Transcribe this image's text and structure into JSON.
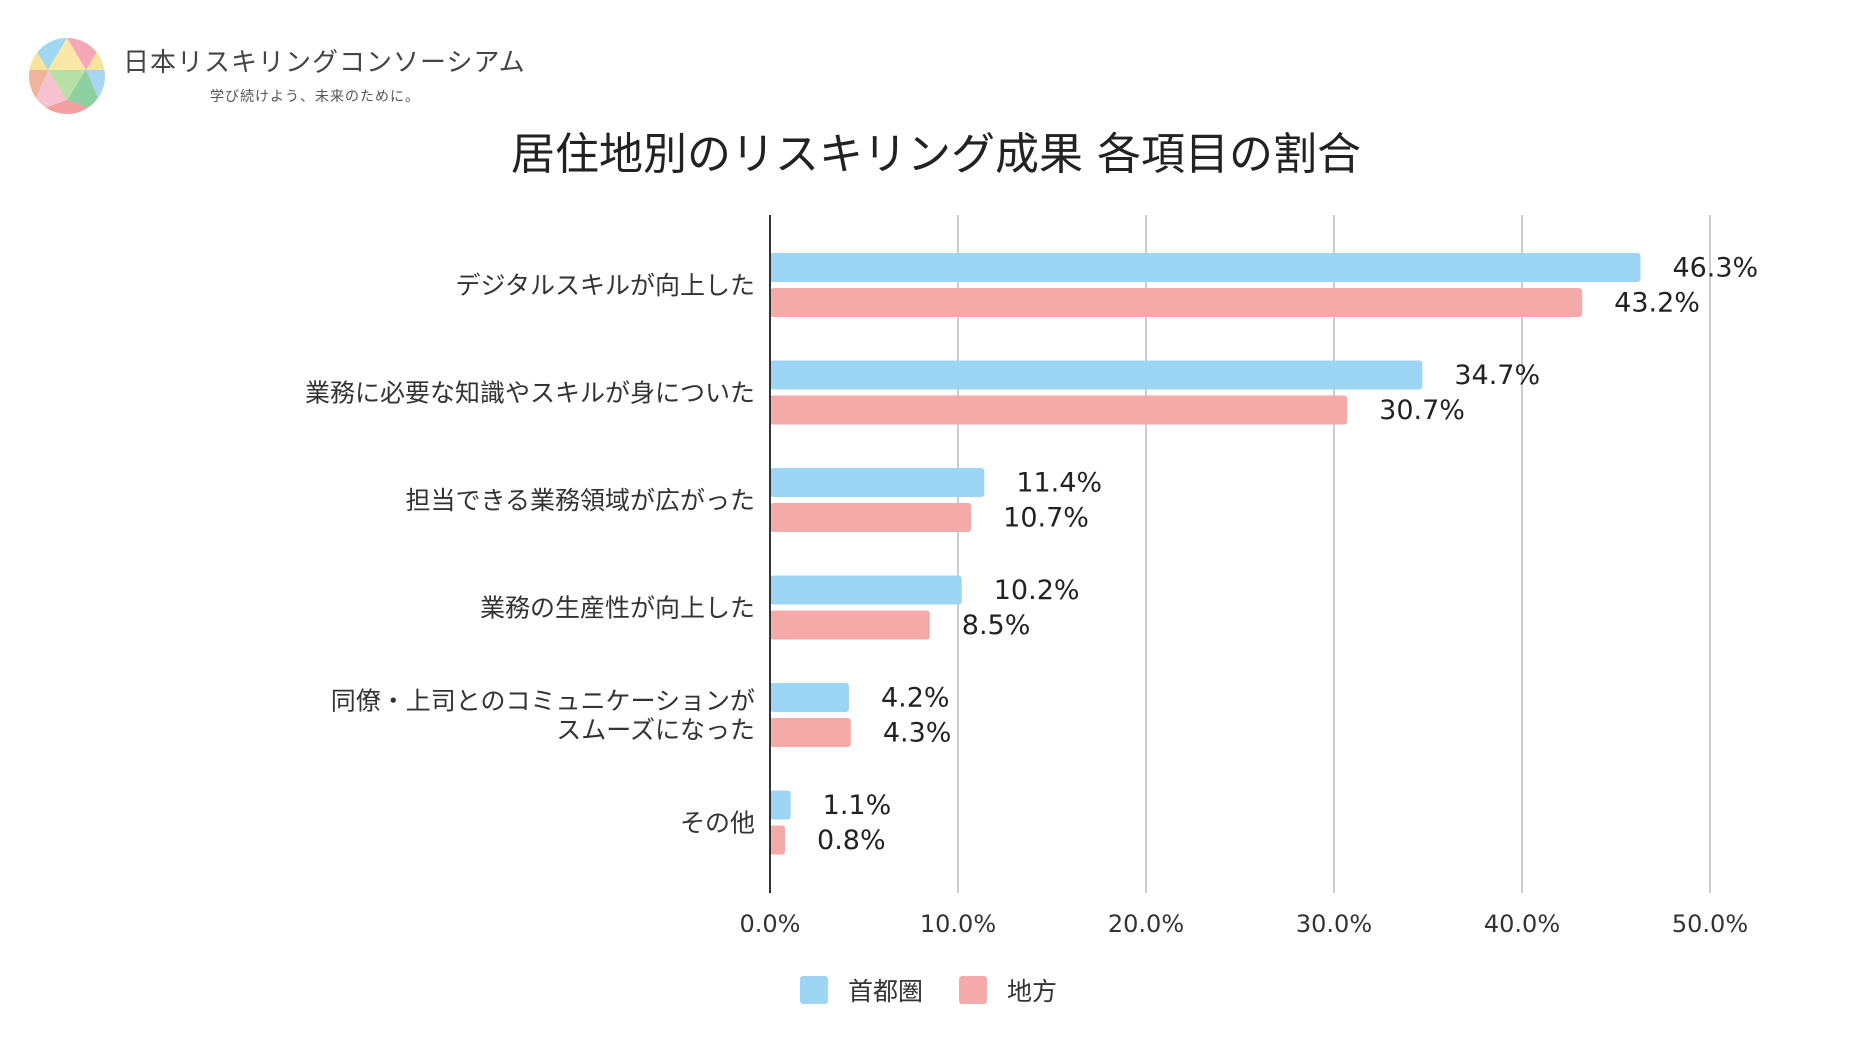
{
  "brand": {
    "name": "日本リスキリングコンソーシアム",
    "tagline": "学び続けよう、未来のために。"
  },
  "colors": {
    "series1": "#9dd5f5",
    "series2": "#f5aaaa",
    "grid": "#cccccc",
    "axis": "#333333"
  },
  "chart_data": {
    "type": "bar",
    "orientation": "horizontal",
    "title": "居住地別のリスキリング成果 各項目の割合",
    "categories": [
      [
        "デジタルスキルが向上した"
      ],
      [
        "業務に必要な知識やスキルが身についた"
      ],
      [
        "担当できる業務領域が広がった"
      ],
      [
        "業務の生産性が向上した"
      ],
      [
        "同僚・上司とのコミュニケーションが",
        "スムーズになった"
      ],
      [
        "その他"
      ]
    ],
    "series": [
      {
        "name": "首都圏",
        "values": [
          46.3,
          34.7,
          11.4,
          10.2,
          4.2,
          1.1
        ],
        "labels": [
          "46.3%",
          "34.7%",
          "11.4%",
          "10.2%",
          "4.2%",
          "1.1%"
        ]
      },
      {
        "name": "地方",
        "values": [
          43.2,
          30.7,
          10.7,
          8.5,
          4.3,
          0.8
        ],
        "labels": [
          "43.2%",
          "30.7%",
          "10.7%",
          "8.5%",
          "4.3%",
          "0.8%"
        ]
      }
    ],
    "xlim": [
      0,
      50
    ],
    "xticks": [
      "0.0%",
      "10.0%",
      "20.0%",
      "30.0%",
      "40.0%",
      "50.0%"
    ],
    "grid": true,
    "legend": "bottom"
  }
}
